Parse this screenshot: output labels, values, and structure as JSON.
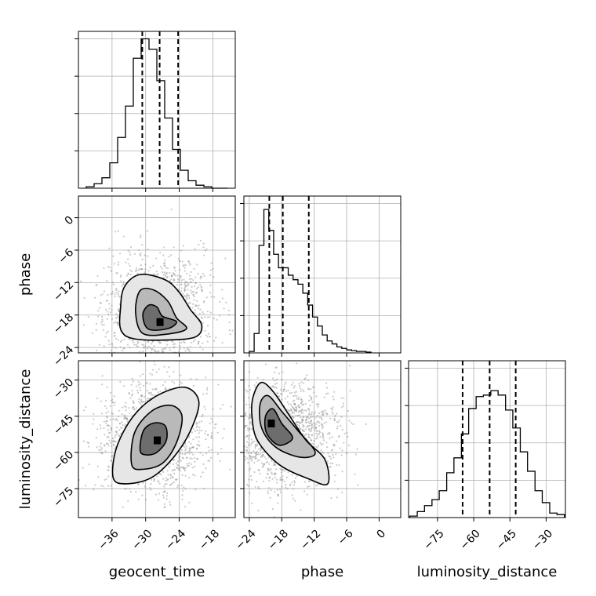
{
  "chart_data": {
    "type": "corner",
    "parameters": [
      {
        "name": "geocent_time",
        "range": [
          -42,
          -14
        ],
        "ticks": [
          -36,
          -30,
          -24,
          -18
        ],
        "tick_labels": [
          "−36",
          "−30",
          "−24",
          "−18"
        ],
        "quantiles": [
          -30.6,
          -27.5,
          -24.2
        ],
        "hist_edges": [
          -40.6,
          -39.2,
          -37.8,
          -36.4,
          -35.0,
          -33.6,
          -32.2,
          -30.8,
          -29.4,
          -28.0,
          -26.6,
          -25.2,
          -23.8,
          -22.4,
          -21.0,
          -19.6,
          -18.2,
          -16.8,
          -15.4
        ],
        "hist_values": [
          0.01,
          0.03,
          0.07,
          0.17,
          0.34,
          0.55,
          0.87,
          1.0,
          0.93,
          0.72,
          0.47,
          0.26,
          0.12,
          0.05,
          0.02,
          0.01,
          0.0,
          0.0
        ]
      },
      {
        "name": "phase",
        "range": [
          -25,
          4
        ],
        "ticks": [
          -24,
          -18,
          -12,
          -6,
          0
        ],
        "tick_labels": [
          "−24",
          "−18",
          "−12",
          "−6",
          "0"
        ],
        "quantiles": [
          -20.3,
          -17.8,
          -13.0
        ],
        "hist_edges": [
          -24.0,
          -23.1,
          -22.2,
          -21.3,
          -20.4,
          -19.5,
          -18.6,
          -17.7,
          -16.8,
          -15.9,
          -15.0,
          -14.1,
          -13.2,
          -12.3,
          -11.4,
          -10.5,
          -9.6,
          -8.7,
          -7.8,
          -6.9,
          -6.0,
          -5.1,
          -4.2,
          -3.3,
          -2.4,
          -1.5
        ],
        "hist_values": [
          0.01,
          0.13,
          0.72,
          0.96,
          0.82,
          0.66,
          0.57,
          0.57,
          0.52,
          0.49,
          0.46,
          0.4,
          0.32,
          0.24,
          0.18,
          0.12,
          0.08,
          0.06,
          0.04,
          0.03,
          0.02,
          0.015,
          0.01,
          0.01,
          0.005
        ]
      },
      {
        "name": "luminosity_distance",
        "range": [
          -87,
          -22
        ],
        "ticks": [
          -75,
          -60,
          -45,
          -30
        ],
        "tick_labels": [
          "−75",
          "−60",
          "−45",
          "−30"
        ],
        "quantiles": [
          -64.6,
          -53.4,
          -42.6
        ],
        "hist_edges": [
          -86.5,
          -83.4,
          -80.4,
          -77.3,
          -74.3,
          -71.2,
          -68.2,
          -65.1,
          -62.1,
          -59.0,
          -56.0,
          -52.9,
          -49.9,
          -46.8,
          -43.8,
          -40.7,
          -37.7,
          -34.6,
          -31.6,
          -28.5,
          -25.5,
          -22.4
        ],
        "hist_values": [
          0.01,
          0.04,
          0.08,
          0.12,
          0.18,
          0.3,
          0.4,
          0.56,
          0.73,
          0.81,
          0.82,
          0.85,
          0.82,
          0.72,
          0.6,
          0.44,
          0.31,
          0.18,
          0.1,
          0.03,
          0.02
        ]
      }
    ],
    "pairs": [
      {
        "x": "geocent_time",
        "y": "phase",
        "density_peak": [
          -27.5,
          -19.3
        ],
        "contours": [
          [
            [
              -34.5,
              -16.8
            ],
            [
              -33.8,
              -12.8
            ],
            [
              -31.0,
              -10.5
            ],
            [
              -26.5,
              -11.5
            ],
            [
              -24.0,
              -13.8
            ],
            [
              -22.0,
              -17.0
            ],
            [
              -20.0,
              -19.8
            ],
            [
              -21.0,
              -22.0
            ],
            [
              -25.5,
              -22.6
            ],
            [
              -32.0,
              -22.4
            ],
            [
              -34.4,
              -20.8
            ]
          ],
          [
            [
              -31.8,
              -17.5
            ],
            [
              -31.0,
              -13.5
            ],
            [
              -28.5,
              -13.4
            ],
            [
              -26.0,
              -15.5
            ],
            [
              -24.5,
              -18.5
            ],
            [
              -22.7,
              -20.5
            ],
            [
              -26.0,
              -21.5
            ],
            [
              -30.5,
              -21.4
            ]
          ],
          [
            [
              -30.5,
              -18.0
            ],
            [
              -29.5,
              -16.2
            ],
            [
              -28.0,
              -16.5
            ],
            [
              -27.0,
              -18.2
            ],
            [
              -24.5,
              -19.2
            ],
            [
              -26.0,
              -20.5
            ],
            [
              -29.5,
              -20.6
            ]
          ]
        ]
      },
      {
        "x": "geocent_time",
        "y": "luminosity_distance",
        "density_peak": [
          -28.0,
          -55.0
        ],
        "contours": [
          [
            [
              -35.8,
              -70.5
            ],
            [
              -35.2,
              -58.0
            ],
            [
              -32.2,
              -45.0
            ],
            [
              -28.0,
              -36.5
            ],
            [
              -23.0,
              -33.0
            ],
            [
              -20.5,
              -39.0
            ],
            [
              -22.0,
              -51.0
            ],
            [
              -25.0,
              -62.0
            ],
            [
              -29.0,
              -70.5
            ],
            [
              -33.5,
              -73.0
            ]
          ],
          [
            [
              -32.5,
              -65.0
            ],
            [
              -32.0,
              -52.0
            ],
            [
              -29.0,
              -43.0
            ],
            [
              -25.5,
              -40.5
            ],
            [
              -23.5,
              -45.0
            ],
            [
              -24.5,
              -56.0
            ],
            [
              -27.0,
              -64.5
            ],
            [
              -30.5,
              -67.0
            ]
          ],
          [
            [
              -31.0,
              -59.0
            ],
            [
              -30.4,
              -51.0
            ],
            [
              -28.5,
              -47.8
            ],
            [
              -26.5,
              -49.0
            ],
            [
              -26.3,
              -55.0
            ],
            [
              -28.0,
              -60.0
            ],
            [
              -30.0,
              -61.0
            ]
          ]
        ]
      },
      {
        "x": "phase",
        "y": "luminosity_distance",
        "density_peak": [
          -20.0,
          -48.0
        ],
        "contours": [
          [
            [
              -23.3,
              -37.0
            ],
            [
              -21.8,
              -31.0
            ],
            [
              -19.5,
              -35.0
            ],
            [
              -16.5,
              -45.0
            ],
            [
              -13.5,
              -55.0
            ],
            [
              -10.0,
              -63.0
            ],
            [
              -9.5,
              -73.0
            ],
            [
              -13.0,
              -71.0
            ],
            [
              -18.5,
              -65.0
            ],
            [
              -22.5,
              -55.0
            ],
            [
              -23.5,
              -45.0
            ]
          ],
          [
            [
              -22.0,
              -40.0
            ],
            [
              -20.5,
              -36.5
            ],
            [
              -18.0,
              -43.0
            ],
            [
              -15.0,
              -51.0
            ],
            [
              -11.8,
              -60.0
            ],
            [
              -14.5,
              -62.0
            ],
            [
              -19.0,
              -58.0
            ],
            [
              -21.7,
              -50.0
            ]
          ],
          [
            [
              -21.0,
              -45.0
            ],
            [
              -19.6,
              -42.0
            ],
            [
              -18.0,
              -48.0
            ],
            [
              -16.0,
              -54.0
            ],
            [
              -18.5,
              -57.0
            ],
            [
              -20.8,
              -52.0
            ]
          ]
        ]
      }
    ],
    "grid": true
  }
}
